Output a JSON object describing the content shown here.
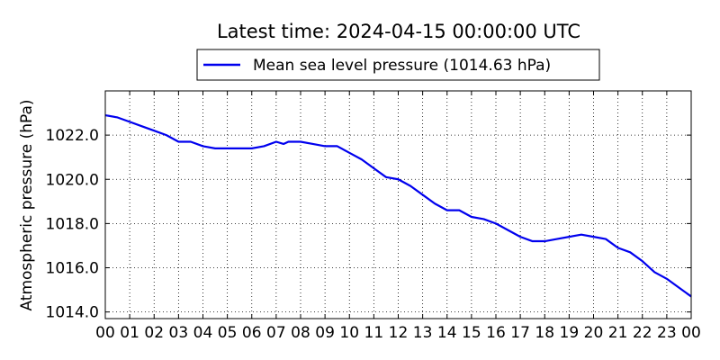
{
  "chart_data": {
    "type": "line",
    "title": "Latest time: 2024-04-15 00:00:00 UTC",
    "xlabel": "",
    "ylabel": "Atmospheric pressure (hPa)",
    "xlim": [
      0,
      24
    ],
    "ylim": [
      1013.7,
      1024.0
    ],
    "x_ticks": [
      0,
      1,
      2,
      3,
      4,
      5,
      6,
      7,
      8,
      9,
      10,
      11,
      12,
      13,
      14,
      15,
      16,
      17,
      18,
      19,
      20,
      21,
      22,
      23,
      24
    ],
    "x_tick_labels": [
      "00",
      "01",
      "02",
      "03",
      "04",
      "05",
      "06",
      "07",
      "08",
      "09",
      "10",
      "11",
      "12",
      "13",
      "14",
      "15",
      "16",
      "17",
      "18",
      "19",
      "20",
      "21",
      "22",
      "23",
      "00"
    ],
    "y_ticks": [
      1014.0,
      1016.0,
      1018.0,
      1020.0,
      1022.0
    ],
    "y_tick_labels": [
      "1014.0",
      "1016.0",
      "1018.0",
      "1020.0",
      "1022.0"
    ],
    "grid": true,
    "legend_position": "top-center",
    "series": [
      {
        "name": "Mean sea level pressure (1014.63 hPa)",
        "color": "#0000ee",
        "x": [
          0,
          0.5,
          1.0,
          1.5,
          2.0,
          2.5,
          3.0,
          3.5,
          4.0,
          4.5,
          5.0,
          5.5,
          6.0,
          6.5,
          7.0,
          7.3,
          7.5,
          8.0,
          8.5,
          9.0,
          9.5,
          10.0,
          10.5,
          11.0,
          11.5,
          12.0,
          12.5,
          13.0,
          13.5,
          14.0,
          14.5,
          15.0,
          15.5,
          16.0,
          16.5,
          17.0,
          17.5,
          18.0,
          18.5,
          19.0,
          19.5,
          20.0,
          20.5,
          21.0,
          21.5,
          22.0,
          22.5,
          23.0,
          23.5,
          24.0
        ],
        "values": [
          1022.9,
          1022.8,
          1022.6,
          1022.4,
          1022.2,
          1022.0,
          1021.7,
          1021.7,
          1021.5,
          1021.4,
          1021.4,
          1021.4,
          1021.4,
          1021.5,
          1021.7,
          1021.6,
          1021.7,
          1021.7,
          1021.6,
          1021.5,
          1021.5,
          1021.2,
          1020.9,
          1020.5,
          1020.1,
          1020.0,
          1019.7,
          1019.3,
          1018.9,
          1018.6,
          1018.6,
          1018.3,
          1018.2,
          1018.0,
          1017.7,
          1017.4,
          1017.2,
          1017.2,
          1017.3,
          1017.4,
          1017.5,
          1017.4,
          1017.3,
          1016.9,
          1016.7,
          1016.3,
          1015.8,
          1015.5,
          1015.1,
          1014.7
        ]
      }
    ]
  }
}
